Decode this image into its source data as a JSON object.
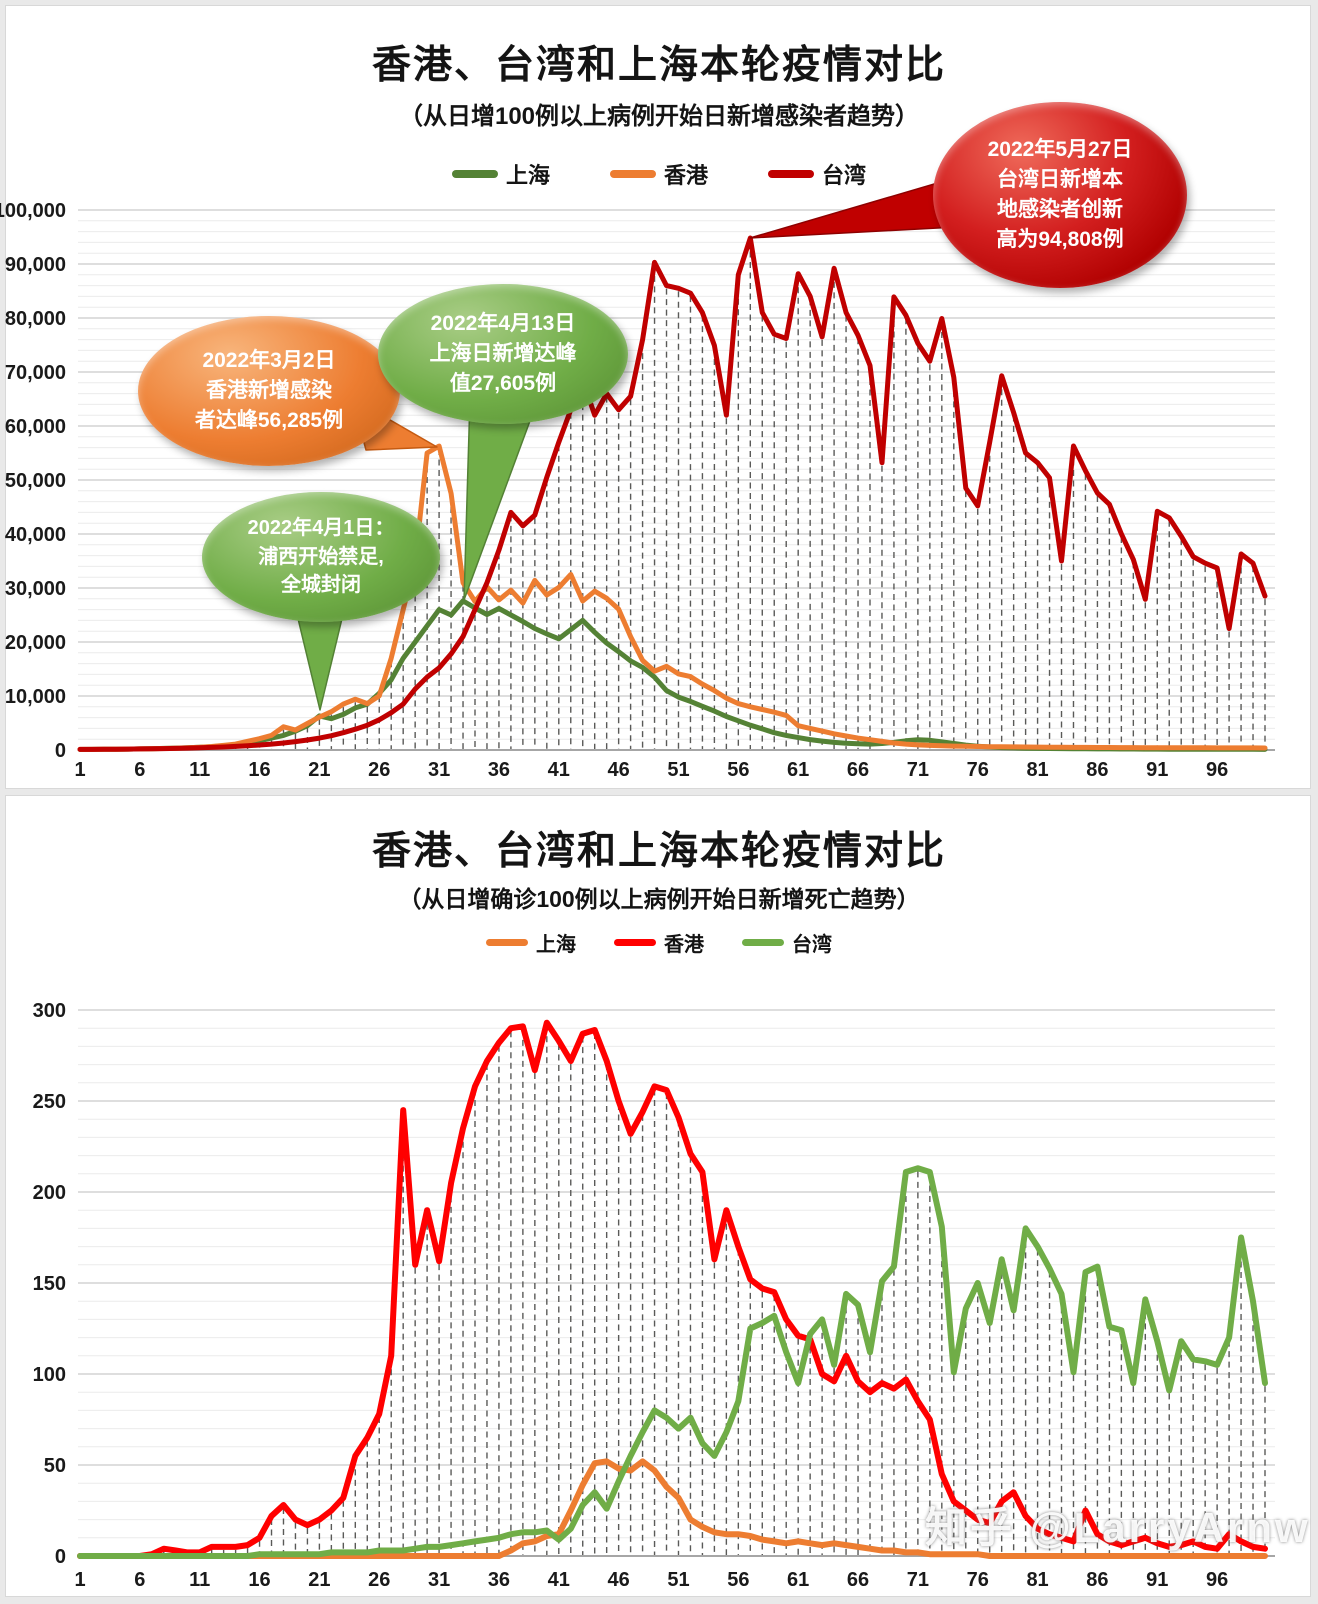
{
  "watermark": "知乎 @LarryArnw",
  "chart_data": [
    {
      "type": "line",
      "title": "香港、台湾和上海本轮疫情对比",
      "subtitle": "（从日增100例以上病例开始日新增感染者趋势）",
      "xlabel": "",
      "ylabel": "",
      "ylim": [
        0,
        100000
      ],
      "y_minor_step": 2000,
      "grid": true,
      "drop_lines": true,
      "legend_position": "top",
      "line_width": 5,
      "x_ticks": [
        1,
        6,
        11,
        16,
        21,
        26,
        31,
        36,
        41,
        46,
        51,
        56,
        61,
        66,
        71,
        76,
        81,
        86,
        91,
        96
      ],
      "y_ticks": [
        {
          "v": 0,
          "label": "0"
        },
        {
          "v": 10000,
          "label": "10,000"
        },
        {
          "v": 20000,
          "label": "20,000"
        },
        {
          "v": 30000,
          "label": "30,000"
        },
        {
          "v": 40000,
          "label": "40,000"
        },
        {
          "v": 50000,
          "label": "50,000"
        },
        {
          "v": 60000,
          "label": "60,000"
        },
        {
          "v": 70000,
          "label": "70,000"
        },
        {
          "v": 80000,
          "label": "80,000"
        },
        {
          "v": 90000,
          "label": "90,000"
        },
        {
          "v": 100000,
          "label": "100,000"
        }
      ],
      "series": [
        {
          "name": "上海",
          "color": "#548235",
          "values": [
            100,
            115,
            130,
            150,
            175,
            200,
            240,
            290,
            350,
            420,
            500,
            620,
            780,
            1000,
            1300,
            1700,
            2200,
            2700,
            3500,
            4500,
            6311,
            5800,
            6600,
            7800,
            8500,
            10500,
            13000,
            17000,
            20000,
            23000,
            26000,
            25000,
            27605,
            26300,
            25100,
            26200,
            25000,
            23800,
            22500,
            21500,
            20600,
            22300,
            24000,
            21800,
            19800,
            18200,
            16500,
            15300,
            13500,
            11000,
            9800,
            9000,
            8100,
            7200,
            6200,
            5400,
            4600,
            3900,
            3200,
            2700,
            2300,
            1930,
            1650,
            1400,
            1250,
            1150,
            1100,
            1200,
            1400,
            1700,
            1900,
            1800,
            1500,
            1200,
            900,
            700,
            550,
            450,
            380,
            320,
            300,
            280,
            260,
            240,
            225,
            210,
            200,
            190,
            180,
            170,
            160,
            155,
            150,
            145,
            140,
            135,
            130,
            125,
            122,
            120
          ]
        },
        {
          "name": "香港",
          "color": "#ED7D31",
          "values": [
            110,
            120,
            135,
            150,
            170,
            195,
            230,
            270,
            330,
            400,
            500,
            650,
            850,
            1100,
            1620,
            2100,
            2700,
            4300,
            3700,
            4900,
            6100,
            7100,
            8500,
            9400,
            8600,
            10010,
            17000,
            26000,
            35000,
            55000,
            56285,
            47500,
            31000,
            27500,
            30200,
            27800,
            29600,
            27200,
            31400,
            28700,
            30100,
            32500,
            27600,
            29400,
            28100,
            26100,
            21000,
            16600,
            14600,
            15500,
            14100,
            13600,
            12200,
            11000,
            9600,
            8600,
            8000,
            7500,
            7000,
            6400,
            4500,
            4000,
            3500,
            3000,
            2600,
            2200,
            1900,
            1600,
            1300,
            1100,
            950,
            850,
            780,
            720,
            680,
            650,
            620,
            600,
            580,
            560,
            540,
            520,
            500,
            490,
            480,
            470,
            460,
            450,
            440,
            430,
            420,
            415,
            410,
            405,
            400,
            395,
            390,
            385,
            380,
            375
          ]
        },
        {
          "name": "台湾",
          "color": "#C00000",
          "values": [
            104,
            115,
            130,
            150,
            170,
            195,
            225,
            260,
            300,
            350,
            410,
            480,
            560,
            660,
            780,
            920,
            1100,
            1300,
            1550,
            1850,
            2200,
            2650,
            3200,
            3850,
            4600,
            5600,
            6900,
            8500,
            11300,
            13500,
            15200,
            17800,
            21000,
            26000,
            31000,
            37000,
            44000,
            41500,
            43500,
            50500,
            57000,
            63000,
            68500,
            62000,
            66000,
            63000,
            65500,
            76000,
            90300,
            86000,
            85500,
            84600,
            81000,
            74900,
            62000,
            88000,
            94808,
            81000,
            77000,
            76200,
            88200,
            84000,
            76500,
            89200,
            81000,
            76800,
            71200,
            53200,
            83900,
            80500,
            75300,
            72000,
            79900,
            69000,
            48500,
            45200,
            57000,
            69300,
            62500,
            55000,
            53200,
            50400,
            35000,
            56300,
            51700,
            47600,
            45500,
            40000,
            35300,
            27900,
            44200,
            43000,
            39600,
            35800,
            34600,
            33700,
            22500,
            36300,
            34600,
            28500
          ]
        }
      ],
      "annotations": [
        {
          "id": "hk-peak",
          "color": "#ED7D31",
          "lines": [
            "2022年3月2日",
            "香港新增感染",
            "者达峰56,285例"
          ]
        },
        {
          "id": "sh-peak",
          "color": "#70AD47",
          "lines": [
            "2022年4月13日",
            "上海日新增达峰",
            "值27,605例"
          ]
        },
        {
          "id": "sh-lockdown",
          "color": "#70AD47",
          "lines": [
            "2022年4月1日：",
            "浦西开始禁足,",
            "全城封闭"
          ]
        },
        {
          "id": "tw-peak",
          "color": "#C00000",
          "lines": [
            "2022年5月27日",
            "台湾日新增本",
            "地感染者创新",
            "高为94,808例"
          ]
        }
      ]
    },
    {
      "type": "line",
      "title": "香港、台湾和上海本轮疫情对比",
      "subtitle": "（从日增确诊100例以上病例开始日新增死亡趋势）",
      "xlabel": "",
      "ylabel": "",
      "ylim": [
        0,
        300
      ],
      "y_minor_step": 10,
      "grid": true,
      "drop_lines": true,
      "legend_position": "top",
      "line_width": 6,
      "x_ticks": [
        1,
        6,
        11,
        16,
        21,
        26,
        31,
        36,
        41,
        46,
        51,
        56,
        61,
        66,
        71,
        76,
        81,
        86,
        91,
        96
      ],
      "y_ticks": [
        {
          "v": 0,
          "label": "0"
        },
        {
          "v": 50,
          "label": "50"
        },
        {
          "v": 100,
          "label": "100"
        },
        {
          "v": 150,
          "label": "150"
        },
        {
          "v": 200,
          "label": "200"
        },
        {
          "v": 250,
          "label": "250"
        },
        {
          "v": 300,
          "label": "300"
        }
      ],
      "series": [
        {
          "name": "上海",
          "color": "#ED7D31",
          "values": [
            0,
            0,
            0,
            0,
            0,
            0,
            0,
            0,
            0,
            0,
            0,
            0,
            0,
            0,
            0,
            0,
            0,
            0,
            0,
            0,
            0,
            0,
            0,
            0,
            0,
            0,
            0,
            0,
            0,
            0,
            0,
            0,
            0,
            0,
            0,
            0,
            3,
            7,
            8,
            11,
            12,
            25,
            39,
            51,
            52,
            48,
            47,
            52,
            47,
            38,
            32,
            20,
            16,
            13,
            12,
            12,
            11,
            9,
            8,
            7,
            8,
            7,
            6,
            7,
            6,
            5,
            4,
            3,
            3,
            2,
            2,
            1,
            1,
            1,
            1,
            1,
            0,
            0,
            0,
            0,
            0,
            0,
            0,
            0,
            0,
            0,
            0,
            0,
            0,
            0,
            0,
            0,
            0,
            0,
            0,
            0,
            0,
            0,
            0,
            0
          ]
        },
        {
          "name": "香港",
          "color": "#FF0000",
          "values": [
            0,
            0,
            0,
            0,
            0,
            0,
            1,
            4,
            3,
            2,
            2,
            5,
            5,
            5,
            6,
            10,
            22,
            28,
            20,
            17,
            20,
            25,
            32,
            55,
            65,
            78,
            110,
            245,
            160,
            190,
            162,
            205,
            235,
            258,
            272,
            282,
            290,
            291,
            267,
            293,
            283,
            272,
            287,
            289,
            272,
            250,
            232,
            244,
            258,
            256,
            241,
            221,
            211,
            163,
            190,
            170,
            152,
            147,
            145,
            130,
            121,
            119,
            100,
            96,
            110,
            96,
            90,
            95,
            92,
            97,
            85,
            75,
            45,
            30,
            25,
            20,
            18,
            30,
            35,
            22,
            15,
            12,
            10,
            8,
            25,
            12,
            8,
            6,
            8,
            10,
            7,
            5,
            6,
            8,
            5,
            4,
            12,
            8,
            5,
            4
          ]
        },
        {
          "name": "台湾",
          "color": "#70AD47",
          "values": [
            0,
            0,
            0,
            0,
            0,
            0,
            0,
            0,
            0,
            0,
            0,
            0,
            0,
            0,
            0,
            1,
            1,
            1,
            1,
            1,
            1,
            2,
            2,
            2,
            2,
            3,
            3,
            3,
            4,
            5,
            5,
            6,
            7,
            8,
            9,
            10,
            12,
            13,
            13,
            14,
            9,
            15,
            28,
            35,
            26,
            41,
            55,
            68,
            80,
            76,
            70,
            76,
            62,
            55,
            68,
            85,
            125,
            128,
            132,
            112,
            95,
            122,
            130,
            105,
            144,
            138,
            112,
            151,
            159,
            211,
            213,
            211,
            181,
            101,
            136,
            150,
            128,
            163,
            135,
            180,
            170,
            158,
            144,
            101,
            156,
            159,
            126,
            124,
            95,
            141,
            118,
            91,
            118,
            108,
            107,
            105,
            120,
            175,
            140,
            95
          ]
        }
      ],
      "annotations": []
    }
  ]
}
